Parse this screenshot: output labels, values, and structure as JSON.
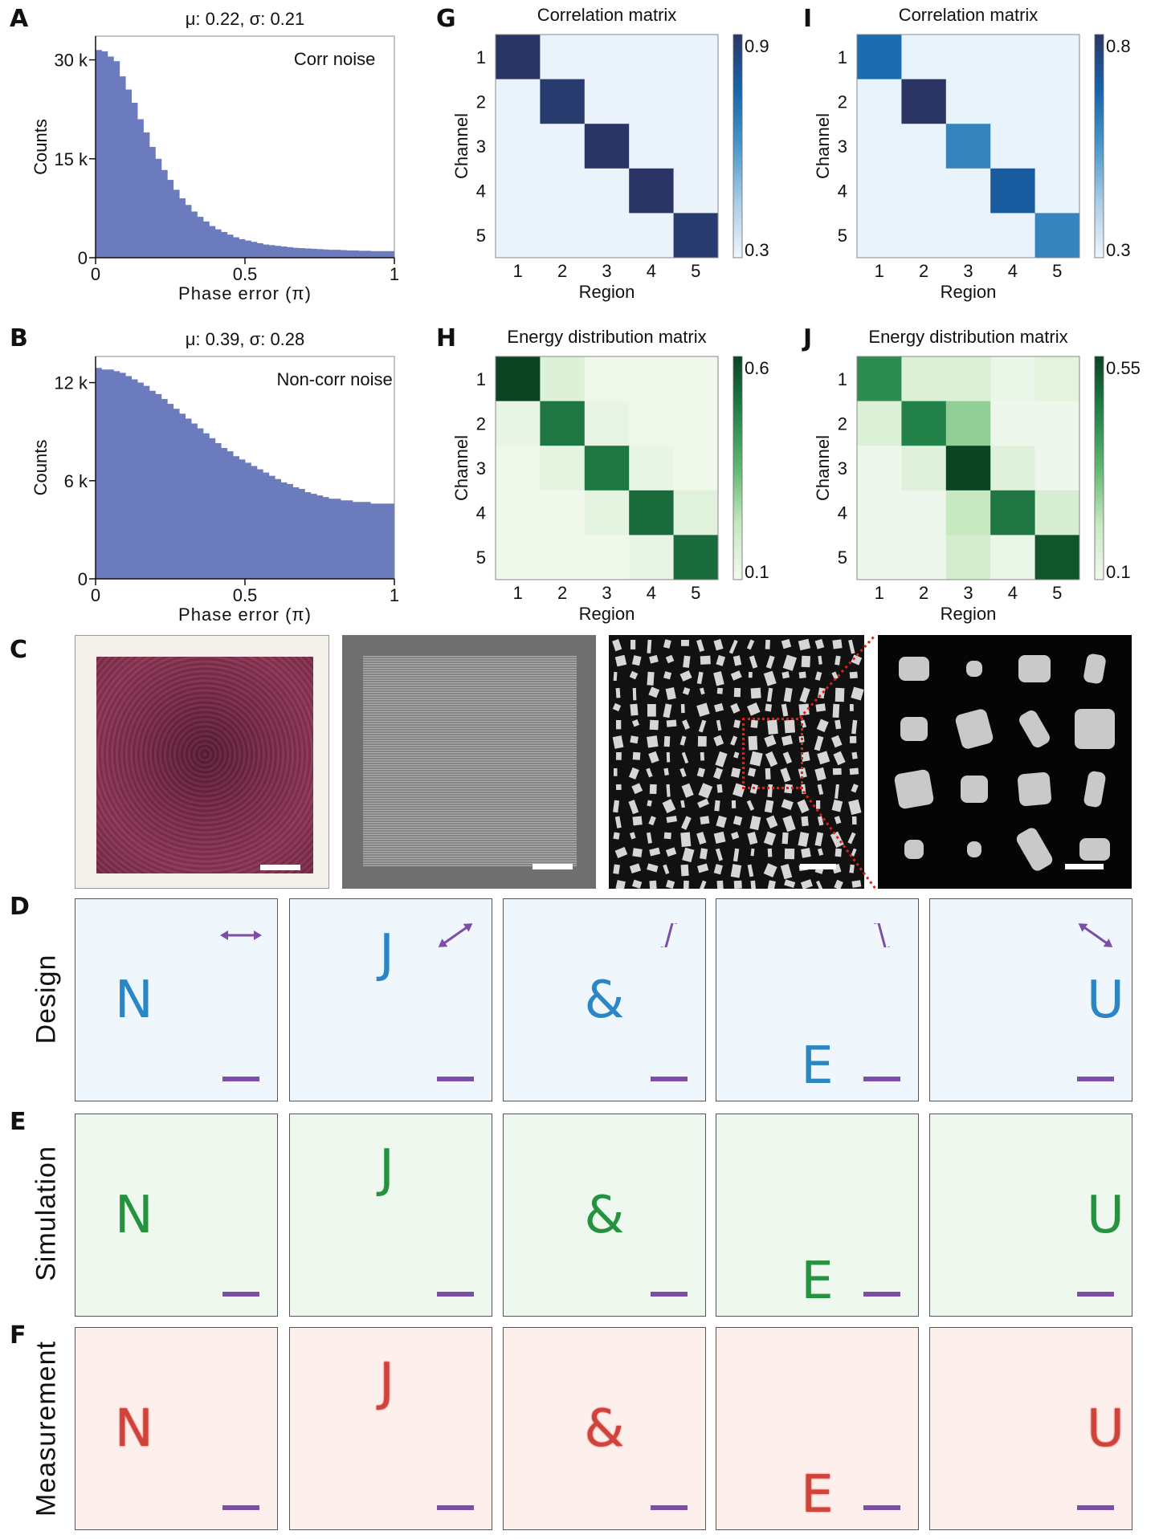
{
  "panel_labels": {
    "A": "A",
    "B": "B",
    "C": "C",
    "D": "D",
    "E": "E",
    "F": "F",
    "G": "G",
    "H": "H",
    "I": "I",
    "J": "J"
  },
  "chart_data": [
    {
      "id": "A",
      "type": "bar",
      "subtype": "histogram",
      "title": "μ: 0.22, σ: 0.21",
      "annotation": "Corr noise",
      "xlabel": "Phase error (π)",
      "ylabel": "Counts",
      "xlim": [
        0,
        1
      ],
      "ylim": [
        0,
        33600
      ],
      "xticks": [
        0,
        0.5,
        1
      ],
      "xtick_labels": [
        "0",
        "0.5",
        "1"
      ],
      "yticks": [
        0,
        15000,
        30000
      ],
      "ytick_labels": [
        "0",
        "15 k",
        "30 k"
      ],
      "bin_width": 0.02,
      "color": "#6b7bbd",
      "values": [
        31500,
        31300,
        30500,
        29800,
        27500,
        25500,
        23500,
        21000,
        19000,
        16800,
        15000,
        13300,
        11800,
        10300,
        9000,
        8000,
        7000,
        6200,
        5500,
        4800,
        4300,
        3900,
        3500,
        3100,
        2800,
        2600,
        2400,
        2200,
        2000,
        1900,
        1800,
        1700,
        1600,
        1500,
        1450,
        1400,
        1350,
        1300,
        1250,
        1200,
        1200,
        1150,
        1100,
        1100,
        1050,
        1050,
        1000,
        1000,
        1000,
        1000
      ]
    },
    {
      "id": "B",
      "type": "bar",
      "subtype": "histogram",
      "title": "μ: 0.39, σ: 0.28",
      "annotation": "Non-corr noise",
      "xlabel": "Phase error (π)",
      "ylabel": "Counts",
      "xlim": [
        0,
        1
      ],
      "ylim": [
        0,
        13600
      ],
      "xticks": [
        0,
        0.5,
        1
      ],
      "xtick_labels": [
        "0",
        "0.5",
        "1"
      ],
      "yticks": [
        0,
        6000,
        12000
      ],
      "ytick_labels": [
        "0",
        "6 k",
        "12 k"
      ],
      "bin_width": 0.02,
      "color": "#6b7bbd",
      "values": [
        12900,
        12800,
        12800,
        12700,
        12600,
        12400,
        12200,
        12000,
        11800,
        11500,
        11300,
        11000,
        10700,
        10400,
        10100,
        9800,
        9500,
        9200,
        8900,
        8600,
        8300,
        8000,
        7800,
        7500,
        7300,
        7100,
        6900,
        6700,
        6500,
        6300,
        6100,
        5900,
        5800,
        5600,
        5500,
        5300,
        5200,
        5100,
        5000,
        4900,
        4900,
        4800,
        4800,
        4700,
        4700,
        4700,
        4600,
        4600,
        4600,
        4600
      ]
    },
    {
      "id": "G",
      "type": "heatmap",
      "title": "Correlation matrix",
      "xlabel": "Region",
      "ylabel": "Channel",
      "x_categories": [
        "1",
        "2",
        "3",
        "4",
        "5"
      ],
      "y_categories": [
        "1",
        "2",
        "3",
        "4",
        "5"
      ],
      "colormap": "blues",
      "colorbar": {
        "min": 0.3,
        "max": 0.9,
        "min_label": "0.3",
        "max_label": "0.9"
      },
      "values": [
        [
          0.9,
          0.31,
          0.31,
          0.31,
          0.31
        ],
        [
          0.31,
          0.88,
          0.31,
          0.31,
          0.31
        ],
        [
          0.31,
          0.31,
          0.9,
          0.31,
          0.31
        ],
        [
          0.31,
          0.31,
          0.31,
          0.9,
          0.31
        ],
        [
          0.31,
          0.31,
          0.31,
          0.31,
          0.88
        ]
      ]
    },
    {
      "id": "I",
      "type": "heatmap",
      "title": "Correlation matrix",
      "xlabel": "Region",
      "ylabel": "Channel",
      "x_categories": [
        "1",
        "2",
        "3",
        "4",
        "5"
      ],
      "y_categories": [
        "1",
        "2",
        "3",
        "4",
        "5"
      ],
      "colormap": "blues",
      "colorbar": {
        "min": 0.3,
        "max": 0.8,
        "min_label": "0.3",
        "max_label": "0.8"
      },
      "values": [
        [
          0.66,
          0.31,
          0.31,
          0.31,
          0.31
        ],
        [
          0.31,
          0.8,
          0.31,
          0.31,
          0.31
        ],
        [
          0.31,
          0.31,
          0.6,
          0.31,
          0.31
        ],
        [
          0.31,
          0.31,
          0.31,
          0.7,
          0.31
        ],
        [
          0.31,
          0.31,
          0.31,
          0.31,
          0.6
        ]
      ]
    },
    {
      "id": "H",
      "type": "heatmap",
      "title": "Energy distribution matrix",
      "xlabel": "Region",
      "ylabel": "Channel",
      "x_categories": [
        "1",
        "2",
        "3",
        "4",
        "5"
      ],
      "y_categories": [
        "1",
        "2",
        "3",
        "4",
        "5"
      ],
      "colormap": "greens",
      "colorbar": {
        "min": 0.1,
        "max": 0.6,
        "min_label": "0.1",
        "max_label": "0.6"
      },
      "values": [
        [
          0.6,
          0.16,
          0.11,
          0.11,
          0.11
        ],
        [
          0.13,
          0.5,
          0.13,
          0.11,
          0.11
        ],
        [
          0.11,
          0.14,
          0.5,
          0.13,
          0.11
        ],
        [
          0.11,
          0.11,
          0.14,
          0.52,
          0.15
        ],
        [
          0.11,
          0.11,
          0.11,
          0.13,
          0.52
        ]
      ]
    },
    {
      "id": "J",
      "type": "heatmap",
      "title": "Energy distribution matrix",
      "xlabel": "Region",
      "ylabel": "Channel",
      "x_categories": [
        "1",
        "2",
        "3",
        "4",
        "5"
      ],
      "y_categories": [
        "1",
        "2",
        "3",
        "4",
        "5"
      ],
      "colormap": "greens",
      "colorbar": {
        "min": 0.1,
        "max": 0.55,
        "min_label": "0.1",
        "max_label": "0.55"
      },
      "values": [
        [
          0.42,
          0.16,
          0.16,
          0.12,
          0.14
        ],
        [
          0.16,
          0.44,
          0.27,
          0.11,
          0.11
        ],
        [
          0.11,
          0.15,
          0.55,
          0.15,
          0.11
        ],
        [
          0.11,
          0.11,
          0.21,
          0.46,
          0.17
        ],
        [
          0.11,
          0.11,
          0.18,
          0.12,
          0.52
        ]
      ]
    }
  ],
  "colormaps": {
    "blues": [
      "#eff6fd",
      "#a9cde6",
      "#4a98c9",
      "#1565ad",
      "#2b3565"
    ],
    "greens": [
      "#f2f9ef",
      "#c7e8c0",
      "#5fb870",
      "#23834a",
      "#0a4423"
    ]
  },
  "fabrication": {
    "colors": {
      "optical": "#7a2a48",
      "sem_bg": "#6f6f6f",
      "zoom_box": "#e0201b",
      "scale_bar": "#ffffff"
    }
  },
  "holograms": {
    "letters": [
      "N",
      "J",
      "&",
      "E",
      "U"
    ],
    "polarization_deg": [
      0,
      35,
      75,
      -75,
      -35
    ],
    "rows": [
      {
        "label": "Design",
        "color": "#2a86c4",
        "bg": "#eff7fd"
      },
      {
        "label": "Simulation",
        "color": "#24923f",
        "bg": "#eff8ee"
      },
      {
        "label": "Measurement",
        "color": "#c8251c",
        "bg": "#fdf0ec"
      }
    ],
    "arrow_color": "#7d4ea6",
    "scale_bar_color": "#7d4ea6"
  }
}
